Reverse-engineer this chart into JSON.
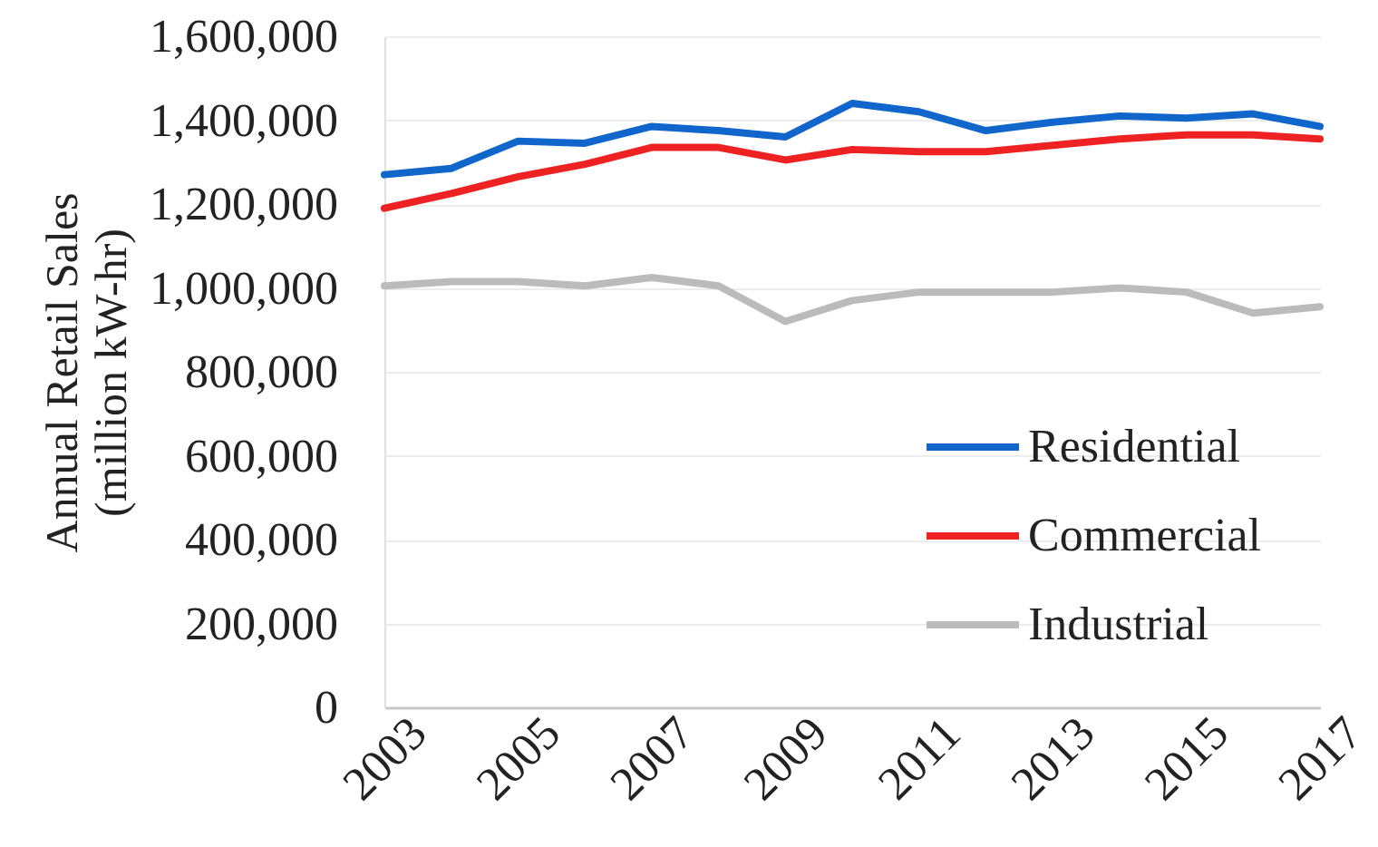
{
  "chart_data": {
    "type": "line",
    "ylabel": "Annual Retail Sales\n(million kW-hr)",
    "x": [
      2003,
      2004,
      2005,
      2006,
      2007,
      2008,
      2009,
      2010,
      2011,
      2012,
      2013,
      2014,
      2015,
      2016,
      2017
    ],
    "series": [
      {
        "name": "Residential",
        "color": "#1166cc",
        "values": [
          1270000,
          1285000,
          1350000,
          1345000,
          1385000,
          1375000,
          1360000,
          1440000,
          1420000,
          1375000,
          1395000,
          1410000,
          1405000,
          1415000,
          1385000
        ]
      },
      {
        "name": "Commercial",
        "color": "#ee2222",
        "values": [
          1190000,
          1225000,
          1265000,
          1295000,
          1335000,
          1335000,
          1305000,
          1330000,
          1325000,
          1325000,
          1340000,
          1355000,
          1365000,
          1365000,
          1355000
        ]
      },
      {
        "name": "Industrial",
        "color": "#bbbbbb",
        "values": [
          1005000,
          1015000,
          1015000,
          1005000,
          1025000,
          1005000,
          920000,
          970000,
          990000,
          990000,
          990000,
          1000000,
          990000,
          940000,
          955000
        ]
      }
    ],
    "xlim": [
      2003,
      2017
    ],
    "xticks": [
      2003,
      2005,
      2007,
      2009,
      2011,
      2013,
      2015,
      2017
    ],
    "ylim": [
      0,
      1600000
    ],
    "yticks": [
      0,
      {
        "value": 200000,
        "label": "200,000"
      },
      {
        "value": 400000,
        "label": "400,000"
      },
      {
        "value": 600000,
        "label": "600,000"
      },
      {
        "value": 800000,
        "label": "800,000"
      },
      {
        "value": 1000000,
        "label": "1,000,000"
      },
      {
        "value": 1200000,
        "label": "1,200,000"
      },
      {
        "value": 1400000,
        "label": "1,400,000"
      },
      {
        "value": 1600000,
        "label": "1,600,000"
      }
    ],
    "grid": "y",
    "legend": "bottom right"
  }
}
